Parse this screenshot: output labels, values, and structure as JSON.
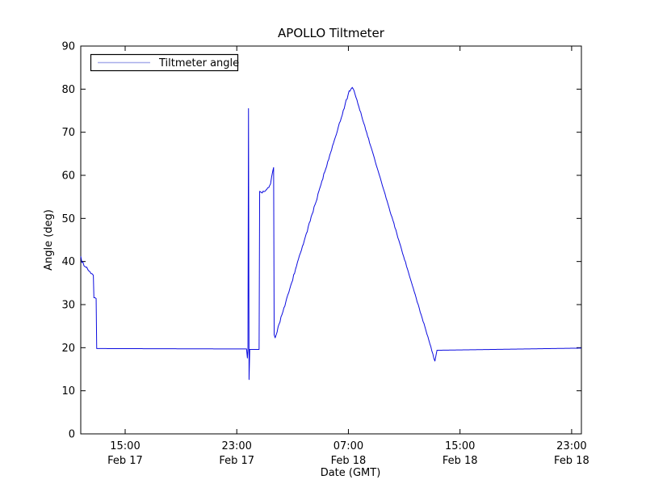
{
  "chart_data": {
    "type": "line",
    "title": "APOLLO Tiltmeter",
    "xlabel": "Date (GMT)",
    "ylabel": "Angle (deg)",
    "legend": {
      "label": "Tiltmeter angle",
      "position": "upper left"
    },
    "grid": false,
    "ylim": [
      0,
      90
    ],
    "y_ticks": [
      0,
      10,
      20,
      30,
      40,
      50,
      60,
      70,
      80,
      90
    ],
    "x_unit_hint": "hours since Feb 17 00:00 GMT",
    "xlim": [
      11.817,
      47.7
    ],
    "x_ticks": [
      {
        "t": 15,
        "time": "15:00",
        "date": "Feb 17"
      },
      {
        "t": 23,
        "time": "23:00",
        "date": "Feb 17"
      },
      {
        "t": 31,
        "time": "07:00",
        "date": "Feb 18"
      },
      {
        "t": 39,
        "time": "15:00",
        "date": "Feb 18"
      },
      {
        "t": 47,
        "time": "23:00",
        "date": "Feb 18"
      }
    ],
    "line_color": "#0b0bdf",
    "legend_line_color": "#a8aeea",
    "keypoint_format": [
      "t_hours",
      "angle_deg",
      "noise_amp_deg_to_next"
    ],
    "series": [
      {
        "name": "Tiltmeter angle",
        "keypoints": [
          [
            11.82,
            41.2,
            0.45
          ],
          [
            12.05,
            39.0,
            0.4
          ],
          [
            12.3,
            38.3,
            0.35
          ],
          [
            12.55,
            37.2,
            0.25
          ],
          [
            12.72,
            36.8,
            0.0
          ],
          [
            12.76,
            31.6,
            0.15
          ],
          [
            12.92,
            31.4,
            0.0
          ],
          [
            12.96,
            19.8,
            0.0
          ],
          [
            23.7,
            19.7,
            0.6
          ],
          [
            23.76,
            17.6,
            0.0
          ],
          [
            23.8,
            19.8,
            0.0
          ],
          [
            23.84,
            75.5,
            0.0
          ],
          [
            23.88,
            12.6,
            0.0
          ],
          [
            23.93,
            19.6,
            0.0
          ],
          [
            24.6,
            19.6,
            0.55
          ],
          [
            24.64,
            56.3,
            0.0
          ],
          [
            24.82,
            55.9,
            0.25
          ],
          [
            25.1,
            56.6,
            0.25
          ],
          [
            25.42,
            58.0,
            0.2
          ],
          [
            25.58,
            61.0,
            0.1
          ],
          [
            25.64,
            61.8,
            0.0
          ],
          [
            25.68,
            23.0,
            0.0
          ],
          [
            25.75,
            22.3,
            0.3
          ],
          [
            31.05,
            79.6,
            0.3
          ],
          [
            31.18,
            80.0,
            0.12
          ],
          [
            31.28,
            80.4,
            0.1
          ],
          [
            31.4,
            79.7,
            0.15
          ],
          [
            37.05,
            18.6,
            0.3
          ],
          [
            37.2,
            16.9,
            0.0
          ],
          [
            37.35,
            19.4,
            0.0
          ],
          [
            47.7,
            19.9,
            0.6
          ]
        ]
      }
    ]
  }
}
